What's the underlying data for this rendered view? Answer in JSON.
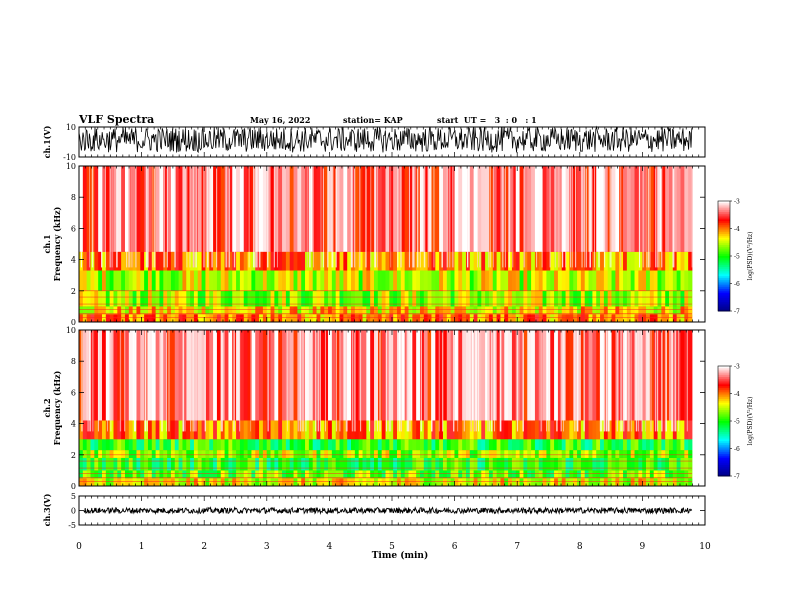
{
  "header": {
    "title": "VLF Spectra",
    "date": "May 16, 2022",
    "station": "station= KAP",
    "start": "start  UT =   3  : 0   : 1"
  },
  "colors": {
    "axis": "#000000",
    "background": "#ffffff",
    "colormap": [
      "#000080",
      "#0000ff",
      "#00ffff",
      "#00ff00",
      "#ffff00",
      "#ff0000",
      "#ffffff"
    ]
  },
  "chart_data": [
    {
      "type": "line",
      "panel": "waveform-ch1",
      "ylabel": "ch.1(V)",
      "ylim": [
        -10,
        10
      ],
      "yticks": [
        "10",
        "-10"
      ],
      "xlim": [
        0,
        10
      ],
      "description_values": {
        "typical_min": -7,
        "typical_max": 10
      },
      "color": "#000000"
    },
    {
      "type": "heatmap",
      "panel": "spectrogram-ch1",
      "ylabel": "ch.1\nFrequency (kHz)",
      "ylabel_line1": "ch.1",
      "ylabel_line2": "Frequency (kHz)",
      "ylim": [
        0,
        10
      ],
      "yticks": [
        "0",
        "2",
        "4",
        "6",
        "8",
        "10"
      ],
      "xlim": [
        0,
        10
      ],
      "bands": [
        {
          "from": 0.0,
          "to": 0.5,
          "level": -4.0
        },
        {
          "from": 0.5,
          "to": 1.0,
          "level": -4.3
        },
        {
          "from": 1.0,
          "to": 2.0,
          "level": -4.6
        },
        {
          "from": 2.0,
          "to": 3.3,
          "level": -4.5
        },
        {
          "from": 3.3,
          "to": 4.5,
          "level": -4.0
        },
        {
          "from": 4.5,
          "to": 10.0,
          "level": -3.4
        }
      ],
      "colorbar": {
        "label": "log(PSD)(V²/Hz)",
        "range": [
          -7,
          -3
        ],
        "ticks": [
          "-3",
          "-4",
          "-5",
          "-6",
          "-7"
        ]
      }
    },
    {
      "type": "heatmap",
      "panel": "spectrogram-ch2",
      "ylabel": "ch.2\nFrequency (kHz)",
      "ylabel_line1": "ch.2",
      "ylabel_line2": "Frequency (kHz)",
      "ylim": [
        0,
        10
      ],
      "yticks": [
        "0",
        "2",
        "4",
        "6",
        "8",
        "10"
      ],
      "xlim": [
        0,
        10
      ],
      "bands": [
        {
          "from": 0.0,
          "to": 0.5,
          "level": -4.4
        },
        {
          "from": 0.5,
          "to": 1.0,
          "level": -4.8
        },
        {
          "from": 1.0,
          "to": 1.8,
          "level": -5.0
        },
        {
          "from": 1.8,
          "to": 2.3,
          "level": -4.6
        },
        {
          "from": 2.3,
          "to": 3.0,
          "level": -5.0
        },
        {
          "from": 3.0,
          "to": 4.2,
          "level": -4.0
        },
        {
          "from": 4.2,
          "to": 10.0,
          "level": -3.4
        }
      ],
      "colorbar": {
        "label": "log(PSD)(V²/Hz)",
        "range": [
          -7,
          -3
        ],
        "ticks": [
          "-3",
          "-4",
          "-5",
          "-6",
          "-7"
        ]
      }
    },
    {
      "type": "line",
      "panel": "waveform-ch3",
      "ylabel": "ch.3(V)",
      "ylim": [
        -5,
        5
      ],
      "yticks": [
        "5",
        "0",
        "-5"
      ],
      "xlim": [
        0,
        10
      ],
      "xlabel": "Time (min)",
      "xticks": [
        "0",
        "1",
        "2",
        "3",
        "4",
        "5",
        "6",
        "7",
        "8",
        "9",
        "10"
      ],
      "description_values": {
        "typical_min": -1,
        "typical_max": 1
      },
      "color": "#000000"
    }
  ]
}
